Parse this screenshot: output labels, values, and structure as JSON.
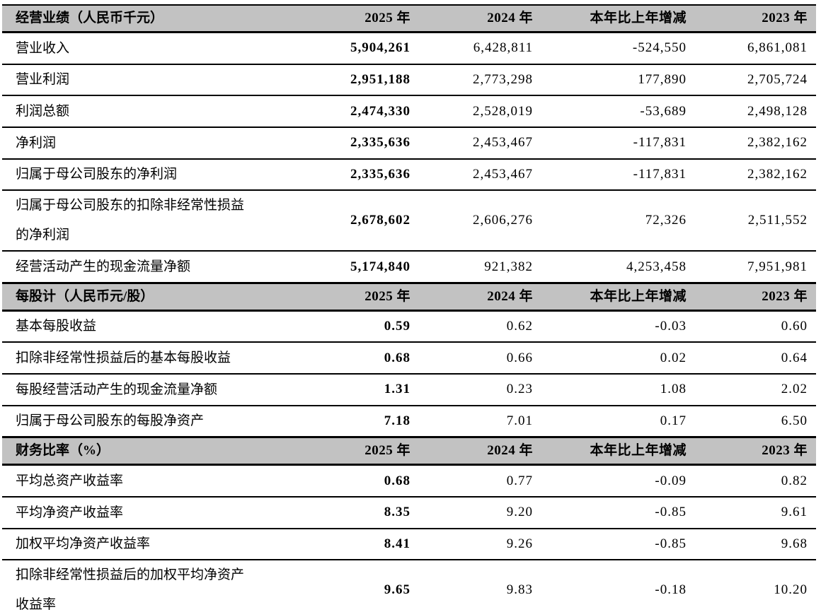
{
  "columns": {
    "y2025": "2025 年",
    "y2024": "2024 年",
    "change": "本年比上年增减",
    "y2023": "2023 年"
  },
  "sections": [
    {
      "title": "经营业绩（人民币千元）",
      "rows": [
        {
          "label": "营业收入",
          "y2025": "5,904,261",
          "y2024": "6,428,811",
          "change": "-524,550",
          "y2023": "6,861,081"
        },
        {
          "label": "营业利润",
          "y2025": "2,951,188",
          "y2024": "2,773,298",
          "change": "177,890",
          "y2023": "2,705,724"
        },
        {
          "label": "利润总额",
          "y2025": "2,474,330",
          "y2024": "2,528,019",
          "change": "-53,689",
          "y2023": "2,498,128"
        },
        {
          "label": "净利润",
          "y2025": "2,335,636",
          "y2024": "2,453,467",
          "change": "-117,831",
          "y2023": "2,382,162"
        },
        {
          "label": "归属于母公司股东的净利润",
          "y2025": "2,335,636",
          "y2024": "2,453,467",
          "change": "-117,831",
          "y2023": "2,382,162"
        },
        {
          "label": "归属于母公司股东的扣除非经常性损益的净利润",
          "y2025": "2,678,602",
          "y2024": "2,606,276",
          "change": "72,326",
          "y2023": "2,511,552"
        },
        {
          "label": "经营活动产生的现金流量净额",
          "y2025": "5,174,840",
          "y2024": "921,382",
          "change": "4,253,458",
          "y2023": "7,951,981"
        }
      ]
    },
    {
      "title": "每股计（人民币元/股）",
      "rows": [
        {
          "label": "基本每股收益",
          "y2025": "0.59",
          "y2024": "0.62",
          "change": "-0.03",
          "y2023": "0.60"
        },
        {
          "label": "扣除非经常性损益后的基本每股收益",
          "y2025": "0.68",
          "y2024": "0.66",
          "change": "0.02",
          "y2023": "0.64"
        },
        {
          "label": "每股经营活动产生的现金流量净额",
          "y2025": "1.31",
          "y2024": "0.23",
          "change": "1.08",
          "y2023": "2.02"
        },
        {
          "label": "归属于母公司股东的每股净资产",
          "y2025": "7.18",
          "y2024": "7.01",
          "change": "0.17",
          "y2023": "6.50"
        }
      ]
    },
    {
      "title": "财务比率（%）",
      "rows": [
        {
          "label": "平均总资产收益率",
          "y2025": "0.68",
          "y2024": "0.77",
          "change": "-0.09",
          "y2023": "0.82"
        },
        {
          "label": "平均净资产收益率",
          "y2025": "8.35",
          "y2024": "9.20",
          "change": "-0.85",
          "y2023": "9.61"
        },
        {
          "label": "加权平均净资产收益率",
          "y2025": "8.41",
          "y2024": "9.26",
          "change": "-0.85",
          "y2023": "9.68"
        },
        {
          "label": "扣除非经常性损益后的加权平均净资产收益率",
          "y2025": "9.65",
          "y2024": "9.83",
          "change": "-0.18",
          "y2023": "10.20"
        }
      ]
    }
  ]
}
